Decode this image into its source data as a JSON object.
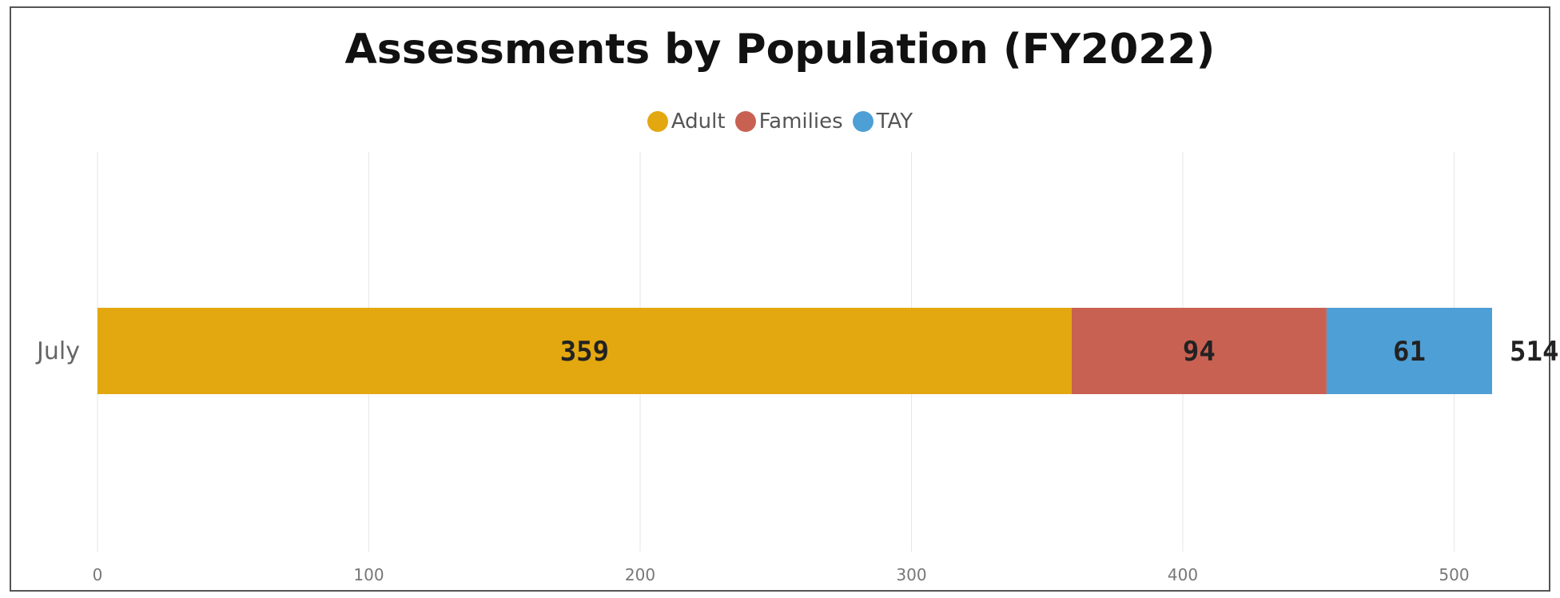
{
  "chart_data": {
    "type": "bar",
    "orientation": "horizontal",
    "stacked": true,
    "title": "Assessments by Population (FY2022)",
    "categories": [
      "July"
    ],
    "series": [
      {
        "name": "Adult",
        "values": [
          359
        ],
        "color": "#E3A710"
      },
      {
        "name": "Families",
        "values": [
          94
        ],
        "color": "#C96152"
      },
      {
        "name": "TAY",
        "values": [
          61
        ],
        "color": "#4E9FD6"
      }
    ],
    "totals": [
      "514"
    ],
    "xlim": [
      0,
      560
    ],
    "xticks": [
      0,
      100,
      200,
      300,
      400,
      500
    ],
    "grid": true,
    "legend_position": "top-center"
  }
}
